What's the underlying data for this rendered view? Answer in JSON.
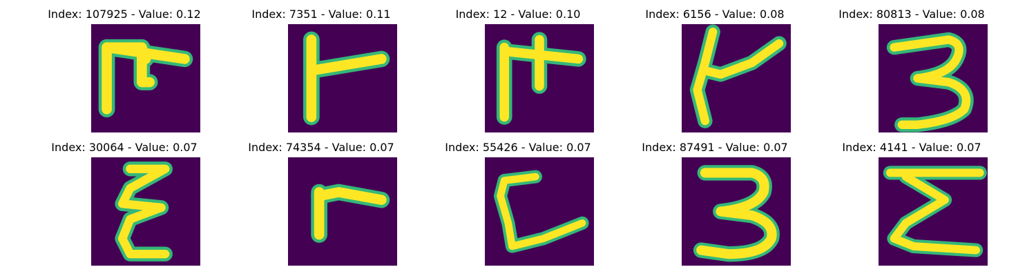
{
  "panels": [
    {
      "title": "Index: 107925 - Value: 0.12",
      "glyph": "glyph-a-icon"
    },
    {
      "title": "Index: 7351 - Value: 0.11",
      "glyph": "glyph-b-icon"
    },
    {
      "title": "Index: 12 - Value: 0.10",
      "glyph": "glyph-c-icon"
    },
    {
      "title": "Index: 6156 - Value: 0.08",
      "glyph": "glyph-d-icon"
    },
    {
      "title": "Index: 80813 - Value: 0.08",
      "glyph": "digit-3-icon"
    },
    {
      "title": "Index: 30064 - Value: 0.07",
      "glyph": "glyph-e-icon"
    },
    {
      "title": "Index: 74354 - Value: 0.07",
      "glyph": "glyph-f-icon"
    },
    {
      "title": "Index: 55426 - Value: 0.07",
      "glyph": "glyph-g-icon"
    },
    {
      "title": "Index: 87491 - Value: 0.07",
      "glyph": "digit-3-icon"
    },
    {
      "title": "Index: 4141 - Value: 0.07",
      "glyph": "glyph-h-icon"
    }
  ],
  "colors": {
    "background": "#440154",
    "stroke_core": "#fde725",
    "stroke_edge": "#35b779"
  }
}
